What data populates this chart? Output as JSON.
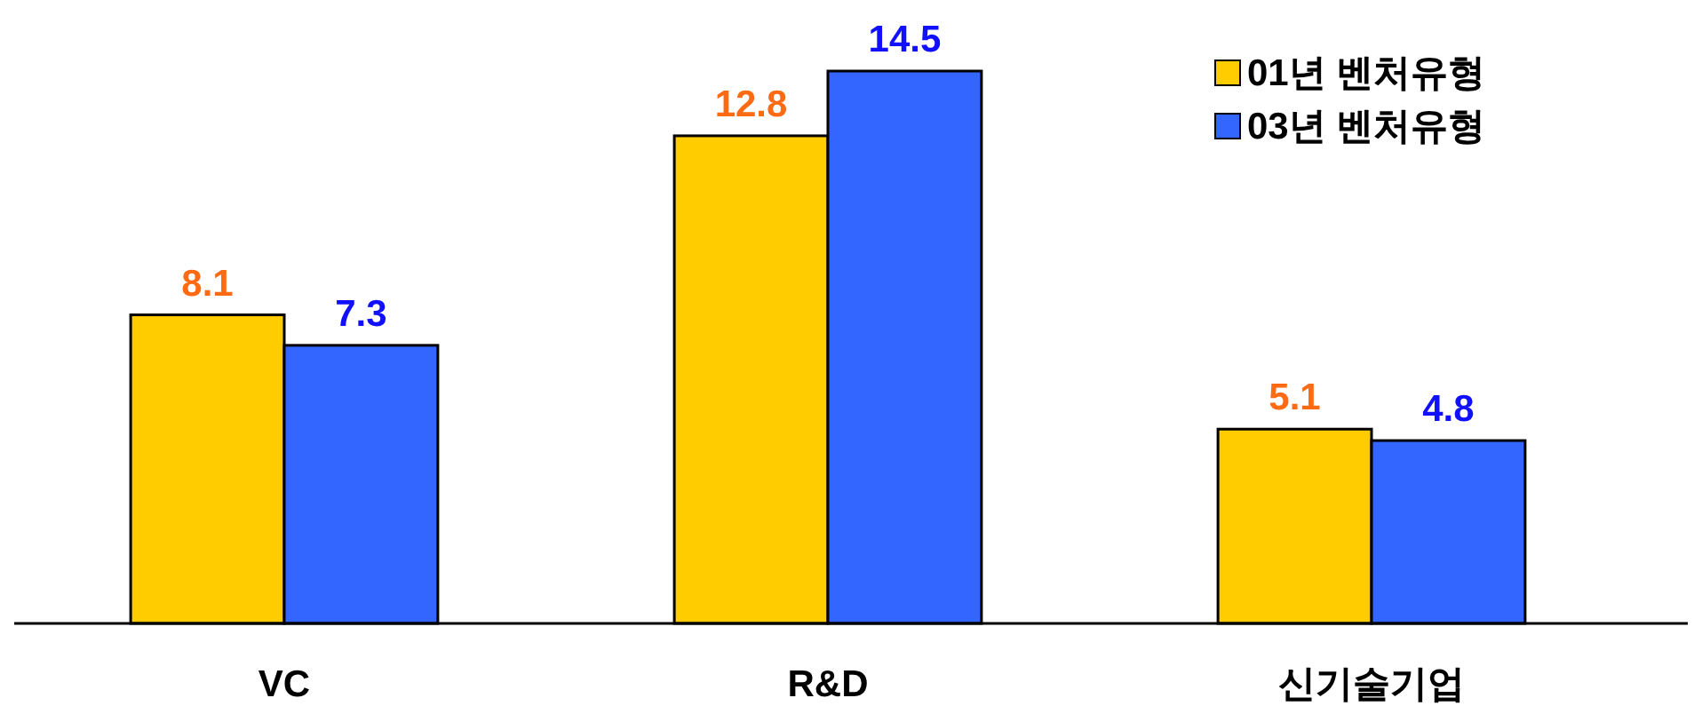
{
  "chart_data": {
    "type": "bar",
    "categories": [
      "VC",
      "R&D",
      "신기술기업"
    ],
    "series": [
      {
        "name": "01년 벤처유형",
        "color": "#ffcc00",
        "values": [
          8.1,
          12.8,
          5.1
        ]
      },
      {
        "name": "03년 벤처유형",
        "color": "#3366ff",
        "values": [
          7.3,
          14.5,
          4.8
        ]
      }
    ],
    "data_labels": true,
    "legend": "top right"
  }
}
